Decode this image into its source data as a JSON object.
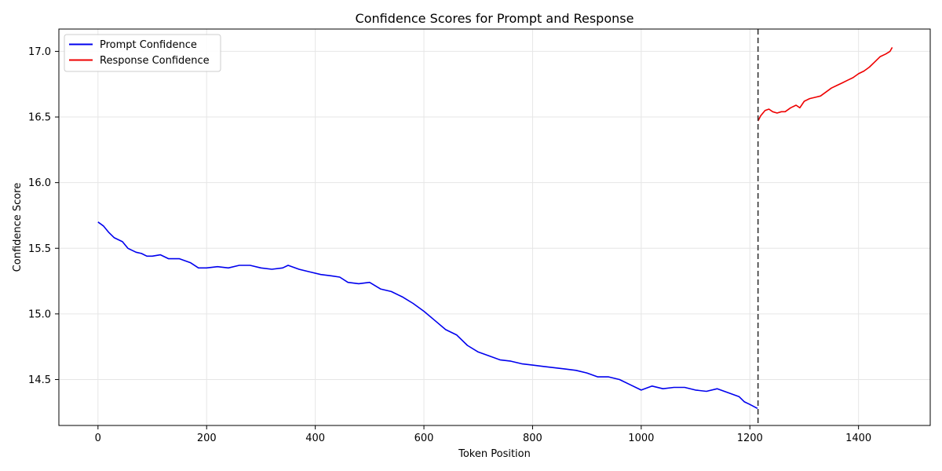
{
  "chart_data": {
    "type": "line",
    "title": "Confidence Scores for Prompt and Response",
    "xlabel": "Token Position",
    "ylabel": "Confidence Score",
    "xlim": [
      -72,
      1532
    ],
    "ylim": [
      14.15,
      17.17
    ],
    "xticks": [
      0,
      200,
      400,
      600,
      800,
      1000,
      1200,
      1400
    ],
    "yticks": [
      14.5,
      15.0,
      15.5,
      16.0,
      16.5,
      17.0
    ],
    "xtick_labels": [
      "0",
      "200",
      "400",
      "600",
      "800",
      "1000",
      "1200",
      "1400"
    ],
    "ytick_labels": [
      "14.5",
      "15.0",
      "15.5",
      "16.0",
      "16.5",
      "17.0"
    ],
    "grid": true,
    "legend_position": "upper-left",
    "vline": {
      "x": 1215,
      "style": "dashed",
      "color": "#333333"
    },
    "series": [
      {
        "name": "Prompt Confidence",
        "color": "#0000ee",
        "x": [
          0,
          10,
          20,
          30,
          45,
          55,
          70,
          80,
          90,
          100,
          115,
          130,
          150,
          170,
          185,
          200,
          220,
          240,
          260,
          280,
          300,
          320,
          340,
          350,
          370,
          390,
          410,
          430,
          445,
          460,
          480,
          500,
          520,
          540,
          560,
          580,
          600,
          620,
          640,
          660,
          680,
          700,
          720,
          740,
          760,
          780,
          800,
          820,
          840,
          860,
          880,
          900,
          920,
          940,
          960,
          980,
          1000,
          1020,
          1040,
          1060,
          1080,
          1100,
          1120,
          1140,
          1160,
          1180,
          1190,
          1200,
          1214
        ],
        "y": [
          15.7,
          15.67,
          15.62,
          15.58,
          15.55,
          15.5,
          15.47,
          15.46,
          15.44,
          15.44,
          15.45,
          15.42,
          15.42,
          15.39,
          15.35,
          15.35,
          15.36,
          15.35,
          15.37,
          15.37,
          15.35,
          15.34,
          15.35,
          15.37,
          15.34,
          15.32,
          15.3,
          15.29,
          15.28,
          15.24,
          15.23,
          15.24,
          15.19,
          15.17,
          15.13,
          15.08,
          15.02,
          14.95,
          14.88,
          14.84,
          14.76,
          14.71,
          14.68,
          14.65,
          14.64,
          14.62,
          14.61,
          14.6,
          14.59,
          14.58,
          14.57,
          14.55,
          14.52,
          14.52,
          14.5,
          14.46,
          14.42,
          14.45,
          14.43,
          14.44,
          14.44,
          14.42,
          14.41,
          14.43,
          14.4,
          14.37,
          14.33,
          14.31,
          14.28
        ]
      },
      {
        "name": "Response Confidence",
        "color": "#ee0000",
        "x": [
          1215,
          1220,
          1228,
          1235,
          1242,
          1250,
          1258,
          1265,
          1275,
          1285,
          1292,
          1300,
          1310,
          1320,
          1330,
          1340,
          1350,
          1360,
          1370,
          1380,
          1390,
          1400,
          1410,
          1420,
          1430,
          1440,
          1450,
          1458,
          1462
        ],
        "y": [
          16.47,
          16.51,
          16.55,
          16.56,
          16.54,
          16.53,
          16.54,
          16.54,
          16.57,
          16.59,
          16.57,
          16.62,
          16.64,
          16.65,
          16.66,
          16.69,
          16.72,
          16.74,
          16.76,
          16.78,
          16.8,
          16.83,
          16.85,
          16.88,
          16.92,
          16.96,
          16.98,
          17.0,
          17.03
        ]
      }
    ]
  }
}
